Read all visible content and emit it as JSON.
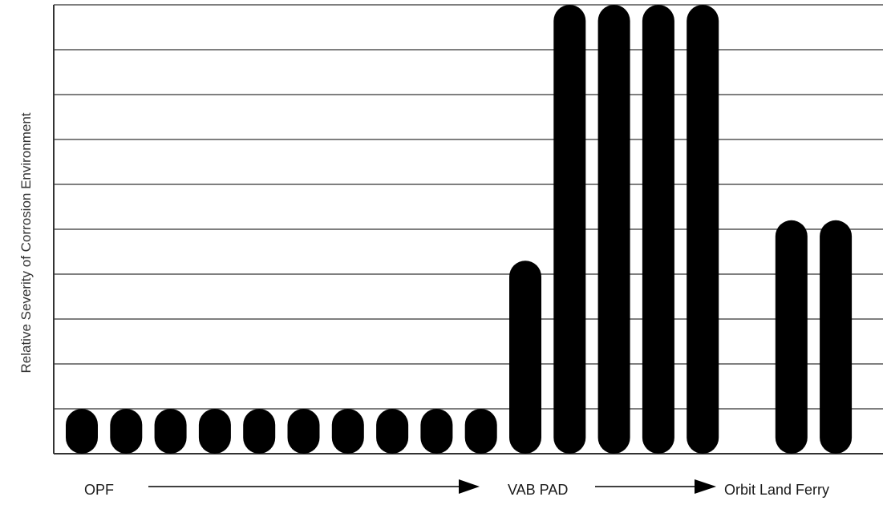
{
  "chart_data": {
    "type": "bar",
    "title": "",
    "ylabel": "Relative Severity of Corrosion Environment",
    "xlabel": "",
    "ylim": [
      0,
      10
    ],
    "grid": true,
    "gridlines": 10,
    "bar_color": "#000000",
    "grid_color": "#555555",
    "stage_labels": [
      "OPF",
      "VAB PAD",
      "Orbit Land Ferry"
    ],
    "bars": [
      {
        "slot": 0,
        "value": 1
      },
      {
        "slot": 1,
        "value": 1
      },
      {
        "slot": 2,
        "value": 1
      },
      {
        "slot": 3,
        "value": 1
      },
      {
        "slot": 4,
        "value": 1
      },
      {
        "slot": 5,
        "value": 1
      },
      {
        "slot": 6,
        "value": 1
      },
      {
        "slot": 7,
        "value": 1
      },
      {
        "slot": 8,
        "value": 1
      },
      {
        "slot": 9,
        "value": 1
      },
      {
        "slot": 10,
        "value": 4.3
      },
      {
        "slot": 11,
        "value": 10
      },
      {
        "slot": 12,
        "value": 10
      },
      {
        "slot": 13,
        "value": 10
      },
      {
        "slot": 14,
        "value": 10
      },
      {
        "slot": 16,
        "value": 5.2
      },
      {
        "slot": 17,
        "value": 5.2
      }
    ]
  }
}
